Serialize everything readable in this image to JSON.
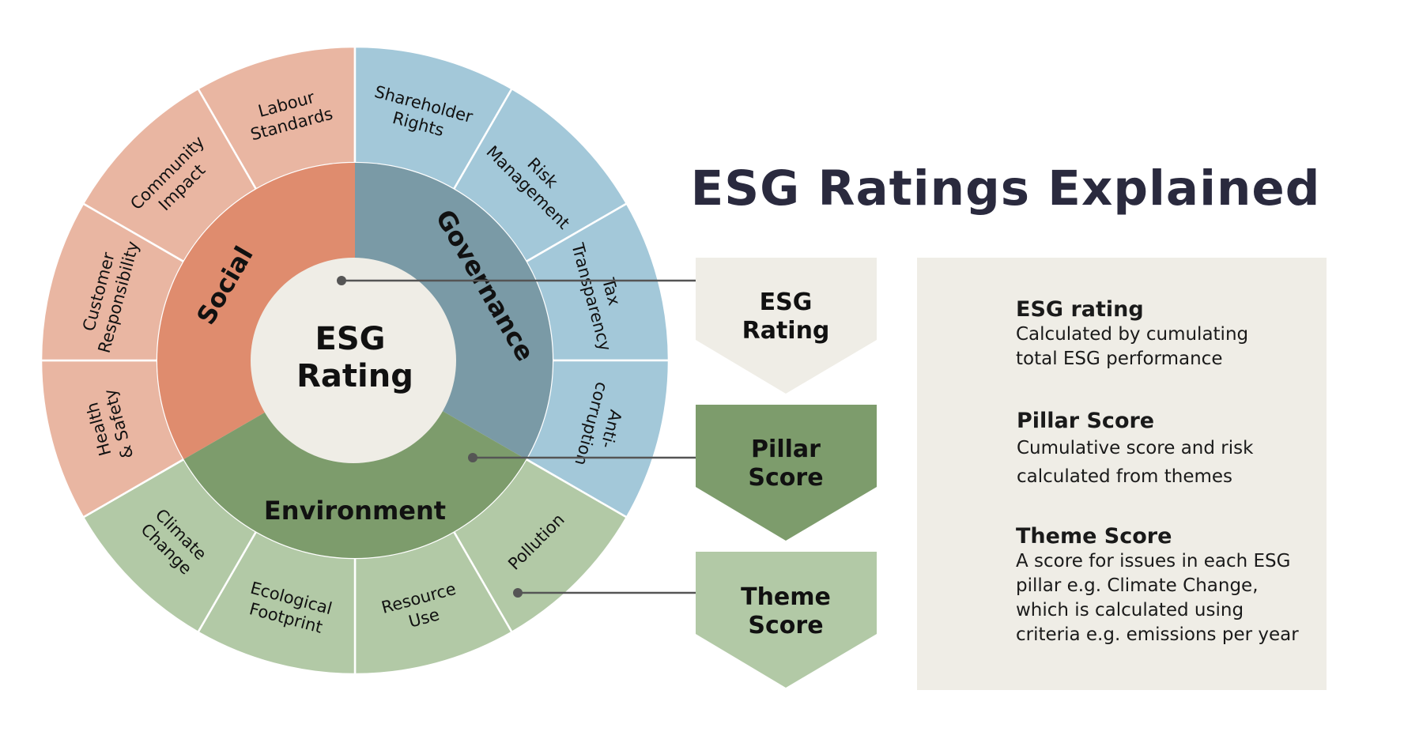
{
  "title": "ESG Ratings Explained",
  "wheel": {
    "center": {
      "line1": "ESG",
      "line2": "Rating"
    },
    "pillars": [
      {
        "key": "social",
        "label": "Social"
      },
      {
        "key": "governance",
        "label": "Governance"
      },
      {
        "key": "environment",
        "label": "Environment"
      }
    ],
    "themes": [
      {
        "lines": [
          "Labour",
          "Standards"
        ],
        "pillar": "social"
      },
      {
        "lines": [
          "Shareholder",
          "Rights"
        ],
        "pillar": "governance"
      },
      {
        "lines": [
          "Risk",
          "Management"
        ],
        "pillar": "governance"
      },
      {
        "lines": [
          "Tax",
          "Transparency"
        ],
        "pillar": "governance"
      },
      {
        "lines": [
          "Anti-",
          "corruption"
        ],
        "pillar": "governance"
      },
      {
        "lines": [
          "Pollution"
        ],
        "pillar": "environment"
      },
      {
        "lines": [
          "Resource",
          "Use"
        ],
        "pillar": "environment"
      },
      {
        "lines": [
          "Ecological",
          "Footprint"
        ],
        "pillar": "environment"
      },
      {
        "lines": [
          "Climate",
          "Change"
        ],
        "pillar": "environment"
      },
      {
        "lines": [
          "Health",
          "& Safety"
        ],
        "pillar": "social"
      },
      {
        "lines": [
          "Customer",
          "Responsibility"
        ],
        "pillar": "social"
      },
      {
        "lines": [
          "Community",
          "Impact"
        ],
        "pillar": "social"
      }
    ]
  },
  "legend_tags": [
    {
      "line1": "ESG",
      "line2": "Rating"
    },
    {
      "line1": "Pillar",
      "line2": "Score"
    },
    {
      "line1": "Theme",
      "line2": "Score"
    }
  ],
  "definitions": [
    {
      "title": "ESG rating",
      "text": "Calculated by cumulating\ntotal ESG performance"
    },
    {
      "title": "Pillar Score",
      "text": "Cumulative score and risk\ncalculated from themes"
    },
    {
      "title": "Theme Score",
      "text": "A score for issues in each ESG\npillar e.g. Climate Change,\nwhich is calculated using\ncriteria e.g. emissions per year"
    }
  ],
  "colors": {
    "social_pillar": "#df8c6e",
    "social_theme": "#e9b6a2",
    "governance_pillar": "#7a9aa6",
    "governance_theme": "#a3c8d9",
    "environment_pillar": "#7d9c6c",
    "environment_theme": "#b2c9a6",
    "center": "#efede6",
    "title": "#2a2a3e",
    "tag_rating": "#efede6",
    "tag_pillar": "#7d9c6c",
    "tag_theme": "#b2c9a6",
    "connector": "#555555"
  }
}
